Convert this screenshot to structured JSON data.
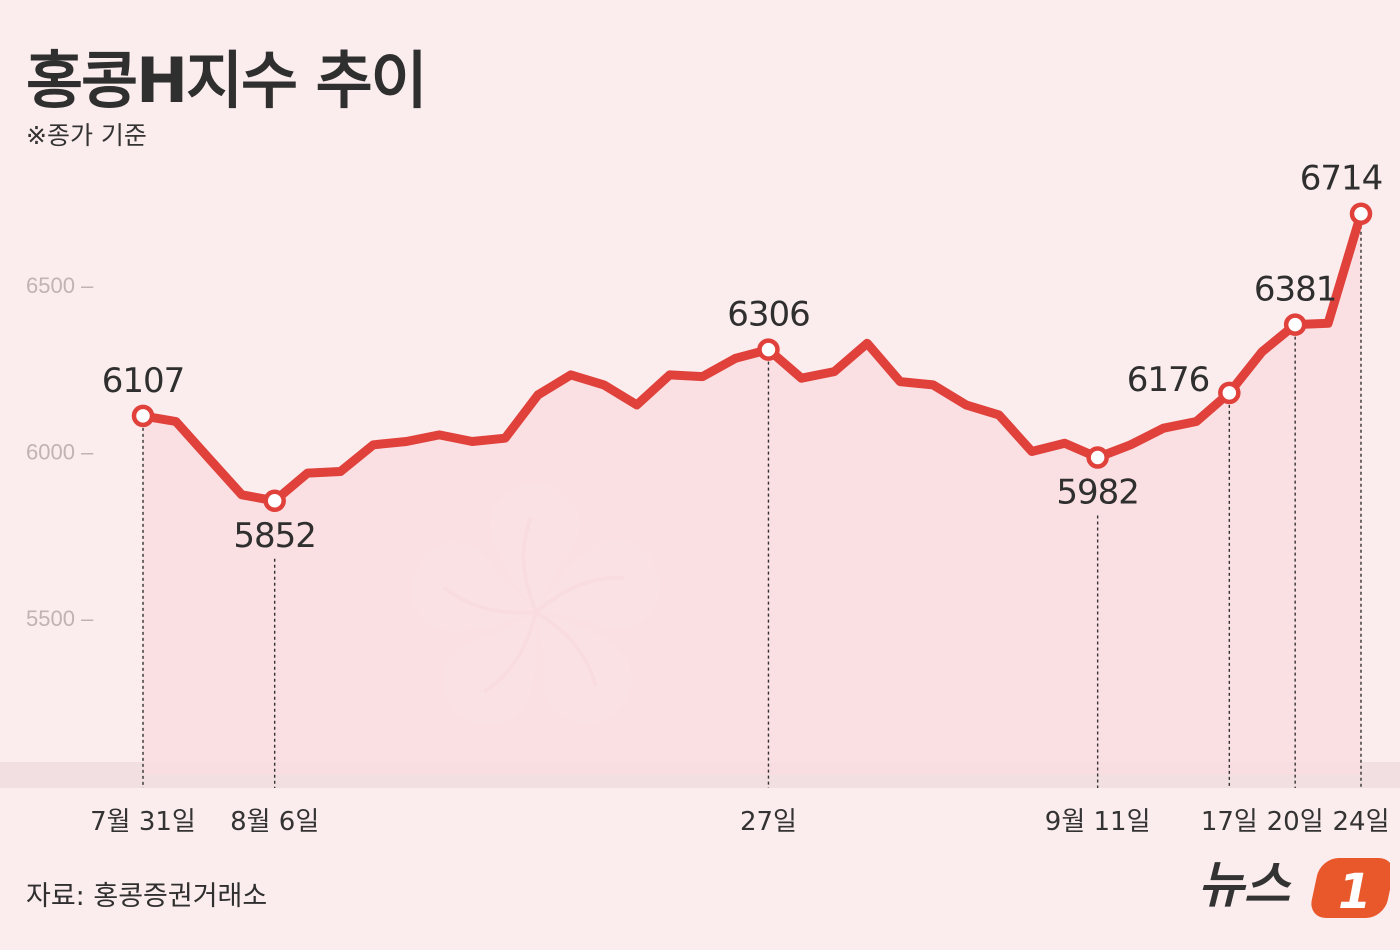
{
  "header": {
    "title": "홍콩H지수 추이",
    "subtitle": "※종가 기준"
  },
  "footer": {
    "source": "자료: 홍콩증권거래소",
    "logo_text": "뉴스1"
  },
  "colors": {
    "line": "#e0413b",
    "area": "#f9dde0",
    "background": "#fbeced",
    "baseline_band": "#f2dfe1"
  },
  "chart_data": {
    "type": "line",
    "title": "홍콩H지수 추이",
    "subtitle": "※종가 기준",
    "ylim": [
      5000,
      6800
    ],
    "yticks": [
      {
        "value": 5500,
        "label": "5500 –"
      },
      {
        "value": 6000,
        "label": "6000 –"
      },
      {
        "value": 6500,
        "label": "6500 –"
      }
    ],
    "grid": false,
    "values": [
      6107,
      6090,
      5980,
      5870,
      5852,
      5935,
      5940,
      6020,
      6030,
      6050,
      6030,
      6040,
      6170,
      6230,
      6200,
      6140,
      6230,
      6225,
      6280,
      6306,
      6220,
      6240,
      6325,
      6210,
      6200,
      6140,
      6110,
      6000,
      6025,
      5982,
      6020,
      6070,
      6090,
      6176,
      6300,
      6381,
      6385,
      6714
    ],
    "xticks": [
      {
        "index": 0,
        "label": "7월 31일"
      },
      {
        "index": 4,
        "label": "8월 6일"
      },
      {
        "index": 19,
        "label": "27일"
      },
      {
        "index": 29,
        "label": "9월 11일"
      },
      {
        "index": 33,
        "label": "17일"
      },
      {
        "index": 35,
        "label": "20일"
      },
      {
        "index": 37,
        "label": "24일"
      }
    ],
    "annotations": [
      {
        "index": 0,
        "label": "6107",
        "pos": "above"
      },
      {
        "index": 4,
        "label": "5852",
        "pos": "below"
      },
      {
        "index": 19,
        "label": "6306",
        "pos": "above"
      },
      {
        "index": 29,
        "label": "5982",
        "pos": "below"
      },
      {
        "index": 33,
        "label": "6176",
        "pos": "left"
      },
      {
        "index": 35,
        "label": "6381",
        "pos": "above"
      },
      {
        "index": 37,
        "label": "6714",
        "pos": "above"
      }
    ]
  }
}
